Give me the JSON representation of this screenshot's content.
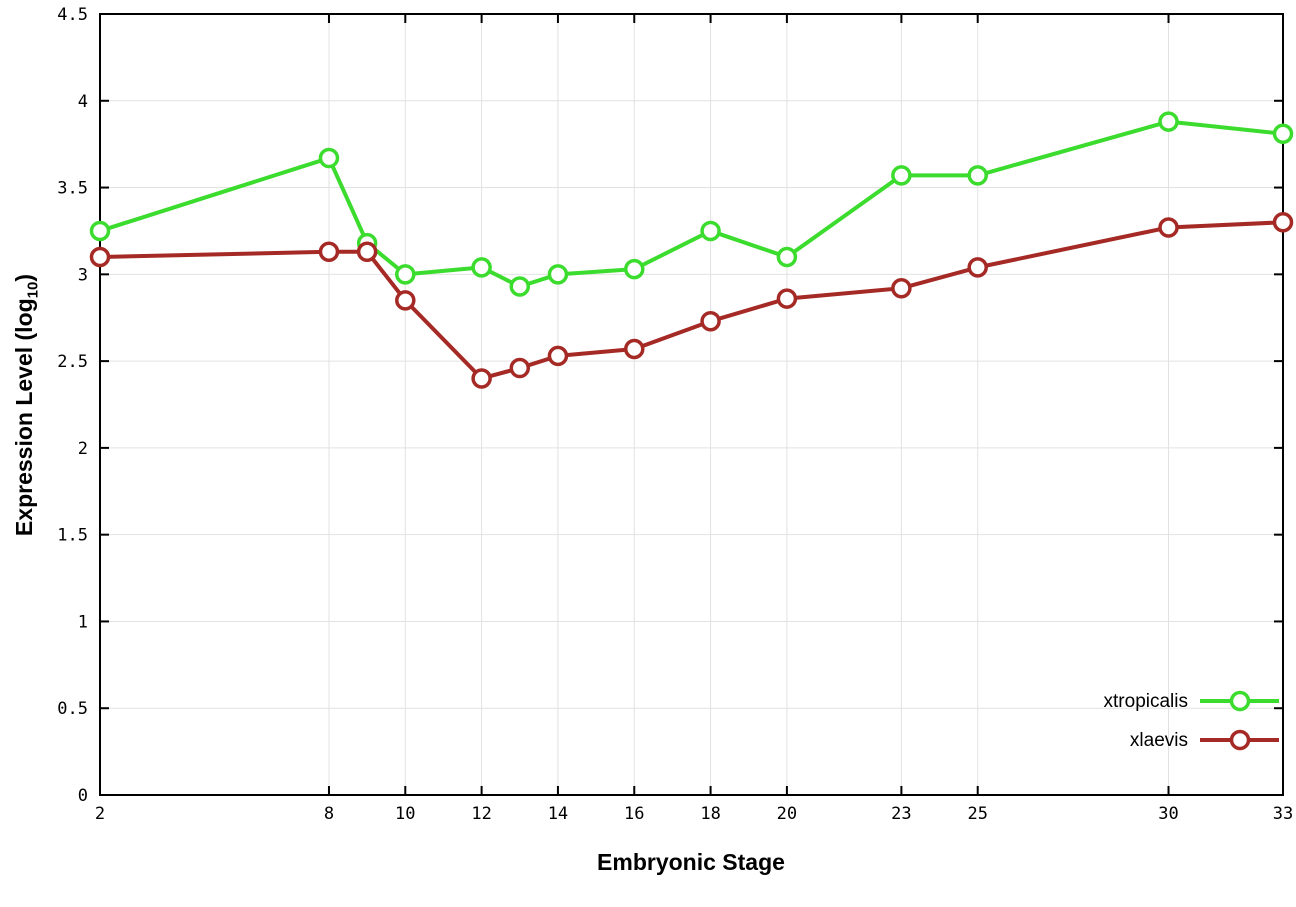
{
  "figure": {
    "background": "#ffffff",
    "xlabel": "Embryonic Stage",
    "ylabel": {
      "prefix": "Expression Level (log",
      "sub": "10",
      "suffix": ")"
    }
  },
  "chart_data": {
    "type": "line",
    "x": [
      2,
      8,
      9,
      10,
      12,
      13,
      14,
      16,
      18,
      20,
      23,
      25,
      30,
      33
    ],
    "series": [
      {
        "name": "xtropicalis",
        "color": "#3bdc2e",
        "values": [
          3.25,
          3.67,
          3.18,
          3.0,
          3.04,
          2.93,
          3.0,
          3.03,
          3.25,
          3.1,
          3.57,
          3.57,
          3.88,
          3.81
        ]
      },
      {
        "name": "xlaevis",
        "color": "#a52a25",
        "values": [
          3.1,
          3.13,
          3.13,
          2.85,
          2.4,
          2.46,
          2.53,
          2.57,
          2.73,
          2.86,
          2.92,
          3.04,
          3.27,
          3.3
        ]
      }
    ],
    "title": "",
    "xlabel": "Embryonic Stage",
    "ylabel": "Expression Level (log10)",
    "xlim": [
      2,
      33
    ],
    "ylim": [
      0,
      4.5
    ],
    "xticks": [
      2,
      8,
      10,
      12,
      14,
      16,
      18,
      20,
      23,
      25,
      30,
      33
    ],
    "xtick_labels": [
      "2",
      "8",
      "10",
      "12",
      "14",
      "16",
      "18",
      "20",
      "23",
      "25",
      "30",
      "33"
    ],
    "yticks": [
      0,
      0.5,
      1,
      1.5,
      2,
      2.5,
      3,
      3.5,
      4,
      4.5
    ],
    "ytick_labels": [
      "0",
      "0.5",
      "1",
      "1.5",
      "2",
      "2.5",
      "3",
      "3.5",
      "4",
      "4.5"
    ],
    "grid": true,
    "grid_color": "#e2e2e2",
    "border_color": "#000000",
    "marker": "open-circle",
    "legend_position": "inside-bottom-right",
    "legend": [
      "xtropicalis",
      "xlaevis"
    ]
  }
}
